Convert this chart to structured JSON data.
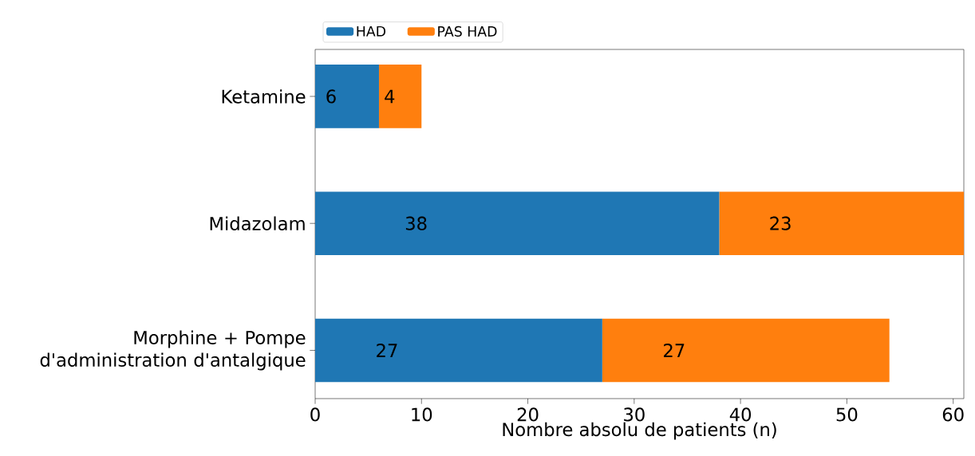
{
  "chart_data": {
    "type": "bar",
    "orientation": "horizontal",
    "stacked": true,
    "xlabel": "Nombre absolu de patients (n)",
    "categories": [
      "Ketamine",
      "Midazolam",
      "Morphine + Pompe d'administration d'antalgique"
    ],
    "series": [
      {
        "name": "HAD",
        "color": "#1f77b4",
        "values": [
          6,
          38,
          27
        ]
      },
      {
        "name": "PAS HAD",
        "color": "#ff7f0e",
        "values": [
          4,
          23,
          27
        ]
      }
    ],
    "xlim": [
      0,
      61
    ],
    "xticks": [
      0,
      10,
      20,
      30,
      40,
      50,
      60
    ],
    "data_labels": true,
    "legend": "top",
    "grid": false
  }
}
